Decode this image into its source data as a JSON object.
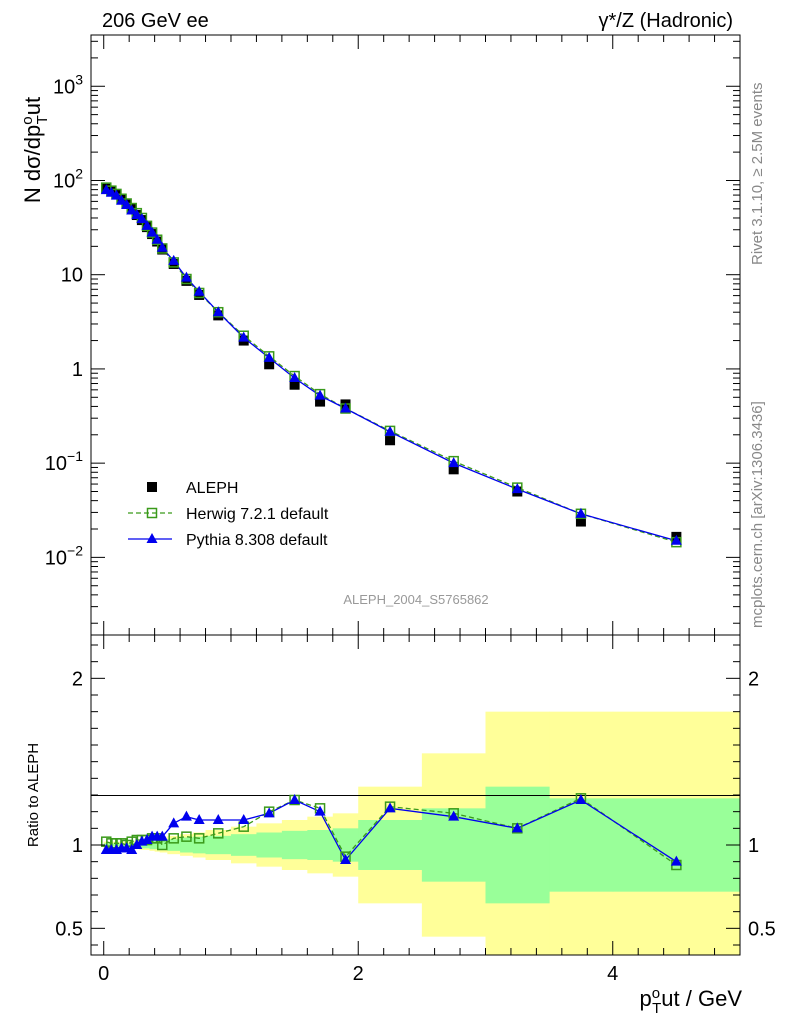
{
  "header": {
    "left_label": "206 GeV ee",
    "right_label": "γ*/Z (Hadronic)"
  },
  "side_labels": {
    "rivet": "Rivet 3.1.10, ≥ 2.5M events",
    "mcplots": "mcplots.cern.ch [arXiv:1306.3436]"
  },
  "analysis_id": "ALEPH_2004_S5765862",
  "colors": {
    "data": "#000000",
    "herwig": "#3a9a1a",
    "pythia": "#0000ee",
    "band_inner": "#99ff99",
    "band_outer": "#ffff99"
  },
  "chart_data": [
    {
      "type": "scatter",
      "panel": "main",
      "ylabel": "N dσ/dp_T^out",
      "yscale": "log",
      "xlim": [
        -0.1,
        5.0
      ],
      "ylim": [
        0.0015,
        3500
      ],
      "yticks": [
        {
          "value": 0.01,
          "label": "10^-2"
        },
        {
          "value": 0.1,
          "label": "10^-1"
        },
        {
          "value": 1,
          "label": "1"
        },
        {
          "value": 10,
          "label": "10"
        },
        {
          "value": 100,
          "label": "10^2"
        },
        {
          "value": 1000,
          "label": "10^3"
        }
      ],
      "legend_position": "bottom-left",
      "x": [
        0.02,
        0.06,
        0.1,
        0.14,
        0.18,
        0.22,
        0.26,
        0.3,
        0.34,
        0.38,
        0.42,
        0.46,
        0.55,
        0.65,
        0.75,
        0.9,
        1.1,
        1.3,
        1.5,
        1.7,
        1.9,
        2.25,
        2.75,
        3.25,
        3.75,
        4.5
      ],
      "series": [
        {
          "name": "ALEPH",
          "marker": "filled-square",
          "values": [
            82,
            77,
            71,
            63,
            57,
            50,
            43,
            38,
            32,
            27,
            22.5,
            18.5,
            13.0,
            8.6,
            6.1,
            3.7,
            2.0,
            1.12,
            0.68,
            0.45,
            0.42,
            0.175,
            0.086,
            0.05,
            0.024,
            0.0165
          ]
        },
        {
          "name": "Herwig 7.2.1 default",
          "marker": "open-square",
          "line": "dashed",
          "values": [
            84,
            78,
            72,
            64,
            57,
            51,
            45,
            40,
            33,
            28,
            23.5,
            19.0,
            13.5,
            9.0,
            6.4,
            4.0,
            2.25,
            1.36,
            0.84,
            0.54,
            0.38,
            0.22,
            0.105,
            0.055,
            0.029,
            0.0145
          ]
        },
        {
          "name": "Pythia 8.308 default",
          "marker": "filled-triangle",
          "line": "solid",
          "values": [
            79,
            74,
            69,
            61,
            55,
            48,
            43,
            39,
            33,
            28,
            23.5,
            19.3,
            14.0,
            9.3,
            6.6,
            4.0,
            2.15,
            1.31,
            0.8,
            0.52,
            0.38,
            0.215,
            0.1,
            0.053,
            0.029,
            0.015
          ]
        }
      ]
    },
    {
      "type": "scatter",
      "panel": "ratio",
      "ylabel": "Ratio to ALEPH",
      "xlabel": "p_T^out / GeV",
      "xlim": [
        -0.1,
        5.0
      ],
      "ylim": [
        0.34,
        2.26
      ],
      "xticks": [
        0,
        2,
        4
      ],
      "yticks": [
        0.5,
        1,
        2
      ],
      "x": [
        0.02,
        0.06,
        0.1,
        0.14,
        0.18,
        0.22,
        0.26,
        0.3,
        0.34,
        0.38,
        0.42,
        0.46,
        0.55,
        0.65,
        0.75,
        0.9,
        1.1,
        1.3,
        1.5,
        1.7,
        1.9,
        2.25,
        2.75,
        3.25,
        3.75,
        4.5
      ],
      "bands": {
        "edges": [
          0.0,
          0.04,
          0.08,
          0.12,
          0.16,
          0.2,
          0.24,
          0.28,
          0.32,
          0.36,
          0.4,
          0.44,
          0.5,
          0.6,
          0.7,
          0.8,
          1.0,
          1.2,
          1.4,
          1.6,
          1.8,
          2.0,
          2.5,
          3.0,
          3.5,
          4.0,
          5.0
        ],
        "inner_low": [
          0.99,
          0.99,
          0.99,
          0.99,
          0.99,
          0.985,
          0.985,
          0.98,
          0.98,
          0.975,
          0.975,
          0.97,
          0.965,
          0.955,
          0.95,
          0.945,
          0.935,
          0.925,
          0.915,
          0.91,
          0.9,
          0.85,
          0.78,
          0.65,
          0.72,
          0.72
        ],
        "inner_high": [
          1.01,
          1.01,
          1.01,
          1.01,
          1.01,
          1.015,
          1.015,
          1.02,
          1.02,
          1.025,
          1.025,
          1.03,
          1.035,
          1.045,
          1.05,
          1.055,
          1.065,
          1.075,
          1.085,
          1.09,
          1.1,
          1.15,
          1.22,
          1.35,
          1.28,
          1.28
        ],
        "outer_low": [
          0.98,
          0.98,
          0.98,
          0.98,
          0.98,
          0.975,
          0.975,
          0.97,
          0.97,
          0.965,
          0.96,
          0.955,
          0.945,
          0.935,
          0.925,
          0.91,
          0.89,
          0.87,
          0.85,
          0.83,
          0.81,
          0.65,
          0.45,
          0.34,
          0.34,
          0.34
        ],
        "outer_high": [
          1.02,
          1.02,
          1.02,
          1.02,
          1.02,
          1.025,
          1.025,
          1.03,
          1.03,
          1.035,
          1.04,
          1.045,
          1.055,
          1.065,
          1.075,
          1.09,
          1.11,
          1.13,
          1.15,
          1.17,
          1.19,
          1.35,
          1.55,
          1.8,
          1.8,
          1.8
        ]
      },
      "series": [
        {
          "name": "Herwig 7.2.1 default",
          "marker": "open-square",
          "line": "dashed",
          "values": [
            1.02,
            1.01,
            1.01,
            1.01,
            1.0,
            1.02,
            1.03,
            1.03,
            1.03,
            1.04,
            1.04,
            1.0,
            1.04,
            1.05,
            1.04,
            1.07,
            1.11,
            1.2,
            1.27,
            1.22,
            0.93,
            1.23,
            1.19,
            1.1,
            1.28,
            0.88
          ]
        },
        {
          "name": "Pythia 8.308 default",
          "marker": "filled-triangle",
          "line": "solid",
          "values": [
            0.97,
            0.97,
            0.97,
            0.98,
            0.98,
            0.97,
            1.0,
            1.02,
            1.03,
            1.05,
            1.05,
            1.05,
            1.13,
            1.17,
            1.15,
            1.15,
            1.15,
            1.19,
            1.27,
            1.2,
            0.91,
            1.22,
            1.17,
            1.1,
            1.27,
            0.9
          ]
        }
      ]
    }
  ]
}
